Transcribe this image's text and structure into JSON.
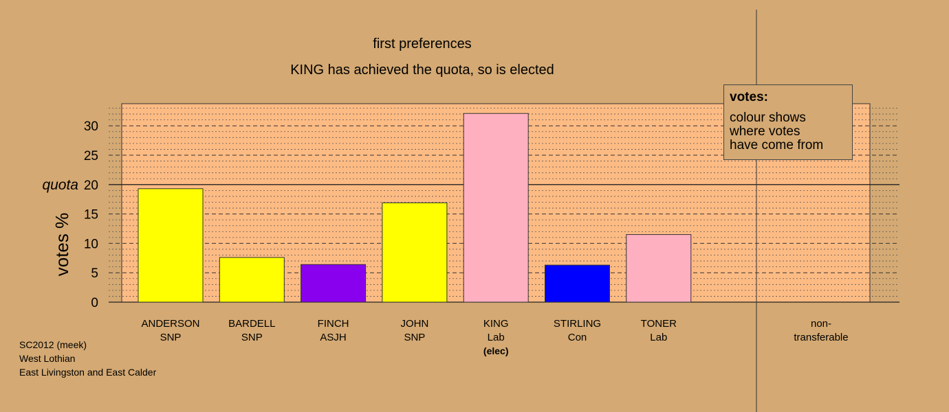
{
  "titles": {
    "stage": "first preferences",
    "status": "KING has achieved the quota, so is elected"
  },
  "legend": {
    "title": "votes:",
    "lines": [
      "colour shows",
      "where votes",
      "have come from"
    ]
  },
  "footer": {
    "line1": "SC2012 (meek)",
    "line2": "West Lothian",
    "line3": "East Livingston and East Calder"
  },
  "colors": {
    "background": "#d4a973",
    "plot_area": "#fdbb84",
    "SNP": "#ffff00",
    "ASJH": "#8800ee",
    "Lab": "#ffb0c0",
    "Con": "#0000ff"
  },
  "chart_data": {
    "type": "bar",
    "ylabel": "votes %",
    "quota_label": "quota",
    "quota": 20,
    "ylim": [
      0,
      33.5
    ],
    "yticks": [
      0,
      5,
      10,
      15,
      20,
      25,
      30
    ],
    "grid": "dashed at 5, dotted at 1",
    "legend_position": "top-right",
    "categories": [
      {
        "name": "ANDERSON",
        "party": "SNP",
        "value": 19.3,
        "color": "#ffff00",
        "note": ""
      },
      {
        "name": "BARDELL",
        "party": "SNP",
        "value": 7.6,
        "color": "#ffff00",
        "note": ""
      },
      {
        "name": "FINCH",
        "party": "ASJH",
        "value": 6.4,
        "color": "#8800ee",
        "note": ""
      },
      {
        "name": "JOHN",
        "party": "SNP",
        "value": 16.9,
        "color": "#ffff00",
        "note": ""
      },
      {
        "name": "KING",
        "party": "Lab",
        "value": 32.1,
        "color": "#ffb0c0",
        "note": "(elec)"
      },
      {
        "name": "STIRLING",
        "party": "Con",
        "value": 6.3,
        "color": "#0000ff",
        "note": ""
      },
      {
        "name": "TONER",
        "party": "Lab",
        "value": 11.5,
        "color": "#ffb0c0",
        "note": ""
      }
    ],
    "nontransferable": {
      "line1": "non-",
      "line2": "transferable",
      "value": 0
    }
  }
}
